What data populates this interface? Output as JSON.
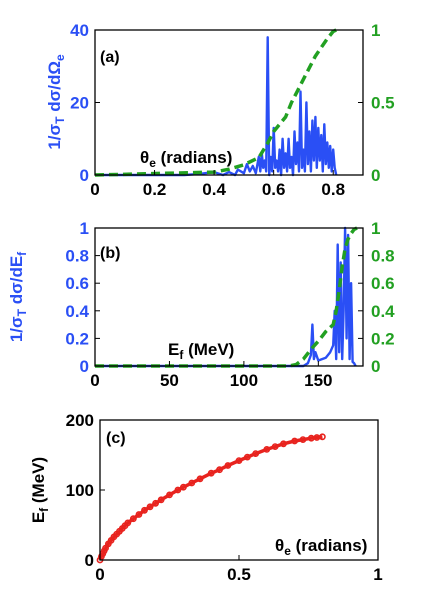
{
  "chart_data": [
    {
      "panel_label": "(a)",
      "type": "line",
      "xlabel": "θe (radians)",
      "xlabel_main": "θ",
      "xlabel_sub": "e",
      "xlabel_rest": " (radians)",
      "ylabel_left": "1/σT dσ/dΩe",
      "ylabel_right": "",
      "xlim": [
        0,
        0.9
      ],
      "ylim_left": [
        0,
        40
      ],
      "ylim_right": [
        0,
        1
      ],
      "x_ticks": [
        0,
        0.2,
        0.4,
        0.6,
        0.8
      ],
      "x_tick_labels": [
        "0",
        "0.2",
        "0.4",
        "0.6",
        "0.8"
      ],
      "y_left_ticks": [
        0,
        20,
        40
      ],
      "y_left_tick_labels": [
        "0",
        "20",
        "40"
      ],
      "y_right_ticks": [
        0,
        0.5,
        1
      ],
      "y_right_tick_labels": [
        "0",
        "0.5",
        "1"
      ],
      "colors": {
        "left": "#2a4ff5",
        "right": "#22a022"
      },
      "series": [
        {
          "axis": "left",
          "style": "solid",
          "x": [
            0,
            0.3,
            0.35,
            0.4,
            0.43,
            0.45,
            0.47,
            0.48,
            0.5,
            0.51,
            0.52,
            0.53,
            0.54,
            0.55,
            0.555,
            0.56,
            0.565,
            0.57,
            0.575,
            0.58,
            0.585,
            0.59,
            0.595,
            0.6,
            0.605,
            0.61,
            0.615,
            0.62,
            0.625,
            0.63,
            0.635,
            0.64,
            0.645,
            0.65,
            0.655,
            0.66,
            0.665,
            0.67,
            0.675,
            0.68,
            0.685,
            0.69,
            0.695,
            0.7,
            0.705,
            0.71,
            0.715,
            0.72,
            0.725,
            0.73,
            0.735,
            0.74,
            0.745,
            0.75,
            0.755,
            0.76,
            0.765,
            0.77,
            0.775,
            0.78,
            0.785,
            0.79,
            0.795,
            0.8,
            0.805,
            0.81
          ],
          "y": [
            0,
            0,
            0.3,
            0.8,
            0,
            0.8,
            0,
            1.5,
            0.5,
            3,
            1,
            2.5,
            0.5,
            5,
            1,
            6,
            2,
            4,
            1,
            38,
            0,
            5,
            1,
            13,
            2,
            4,
            1,
            7,
            0,
            10,
            2,
            6,
            1,
            10,
            2,
            5,
            0,
            12,
            3,
            9,
            1,
            23,
            2,
            7,
            1,
            20,
            3,
            12,
            1,
            15,
            4,
            16,
            2,
            13,
            4,
            11,
            1,
            14,
            3,
            9,
            2,
            8,
            1,
            7,
            2,
            0
          ]
        },
        {
          "axis": "right",
          "style": "dashed",
          "x": [
            0,
            0.4,
            0.45,
            0.5,
            0.55,
            0.58,
            0.6,
            0.62,
            0.64,
            0.66,
            0.68,
            0.7,
            0.72,
            0.74,
            0.76,
            0.78,
            0.8,
            0.81
          ],
          "y": [
            0,
            0.02,
            0.04,
            0.07,
            0.12,
            0.22,
            0.3,
            0.35,
            0.4,
            0.5,
            0.58,
            0.66,
            0.74,
            0.82,
            0.88,
            0.94,
            0.99,
            1.0
          ]
        }
      ]
    },
    {
      "panel_label": "(b)",
      "type": "line",
      "xlabel": "Ef (MeV)",
      "xlabel_main": "E",
      "xlabel_sub": "f",
      "xlabel_rest": " (MeV)",
      "ylabel_left": "1/σT dσ/dEf",
      "ylabel_right": "",
      "xlim": [
        0,
        180
      ],
      "ylim_left": [
        0,
        1
      ],
      "ylim_right": [
        0,
        1
      ],
      "x_ticks": [
        0,
        50,
        100,
        150
      ],
      "x_tick_labels": [
        "0",
        "50",
        "100",
        "150"
      ],
      "y_left_ticks": [
        0,
        0.2,
        0.4,
        0.6,
        0.8,
        1
      ],
      "y_left_tick_labels": [
        "0",
        "0.2",
        "0.4",
        "0.6",
        "0.8",
        "1"
      ],
      "y_right_ticks": [
        0,
        0.2,
        0.4,
        0.6,
        0.8,
        1
      ],
      "y_right_tick_labels": [
        "0",
        "0.2",
        "0.4",
        "0.6",
        "0.8",
        "1"
      ],
      "colors": {
        "left": "#2a4ff5",
        "right": "#22a022"
      },
      "series": [
        {
          "axis": "left",
          "style": "solid",
          "x": [
            0,
            140,
            143,
            145,
            146,
            147,
            148,
            150,
            155,
            158,
            160,
            161,
            162,
            163,
            164,
            165,
            166,
            167,
            168,
            169,
            170,
            171,
            172,
            173,
            174,
            175
          ],
          "y": [
            0,
            0,
            0.02,
            0.08,
            0.3,
            0.05,
            0.1,
            0.04,
            0.06,
            0.1,
            0.15,
            0.4,
            0.05,
            0.88,
            0.1,
            0.75,
            0.05,
            0.4,
            1.0,
            0.2,
            0.95,
            0.05,
            0.6,
            0.03,
            0.02,
            0.0
          ]
        },
        {
          "axis": "right",
          "style": "dashed",
          "x": [
            0,
            130,
            135,
            140,
            145,
            150,
            155,
            160,
            162,
            164,
            166,
            168,
            170,
            172,
            174,
            176
          ],
          "y": [
            0,
            0,
            0.01,
            0.05,
            0.12,
            0.18,
            0.25,
            0.3,
            0.4,
            0.55,
            0.72,
            0.85,
            0.92,
            0.96,
            0.99,
            1.0
          ]
        }
      ]
    },
    {
      "panel_label": "(c)",
      "type": "scatter",
      "xlabel": "θe (radians)",
      "xlabel_main": "θ",
      "xlabel_sub": "e",
      "xlabel_rest": " (radians)",
      "ylabel_left": "Ef (MeV)",
      "xlim": [
        0,
        1
      ],
      "ylim_left": [
        0,
        200
      ],
      "x_ticks": [
        0,
        0.5,
        1
      ],
      "x_tick_labels": [
        "0",
        "0.5",
        "1"
      ],
      "y_left_ticks": [
        0,
        100,
        200
      ],
      "y_left_tick_labels": [
        "0",
        "100",
        "200"
      ],
      "colors": {
        "points": "#e8231e"
      },
      "series": [
        {
          "style": "points",
          "x": [
            0.0,
            0.005,
            0.01,
            0.015,
            0.02,
            0.03,
            0.04,
            0.05,
            0.06,
            0.07,
            0.08,
            0.09,
            0.1,
            0.12,
            0.14,
            0.16,
            0.18,
            0.2,
            0.22,
            0.25,
            0.28,
            0.3,
            0.33,
            0.36,
            0.4,
            0.43,
            0.46,
            0.5,
            0.53,
            0.56,
            0.6,
            0.63,
            0.66,
            0.7,
            0.73,
            0.76,
            0.78,
            0.8
          ],
          "y": [
            0,
            5,
            9,
            13,
            17,
            23,
            28,
            33,
            37,
            41,
            45,
            49,
            53,
            59,
            65,
            71,
            76,
            81,
            86,
            93,
            100,
            104,
            110,
            116,
            124,
            129,
            135,
            142,
            147,
            152,
            158,
            162,
            166,
            170,
            172,
            174,
            175,
            176
          ]
        }
      ]
    }
  ]
}
